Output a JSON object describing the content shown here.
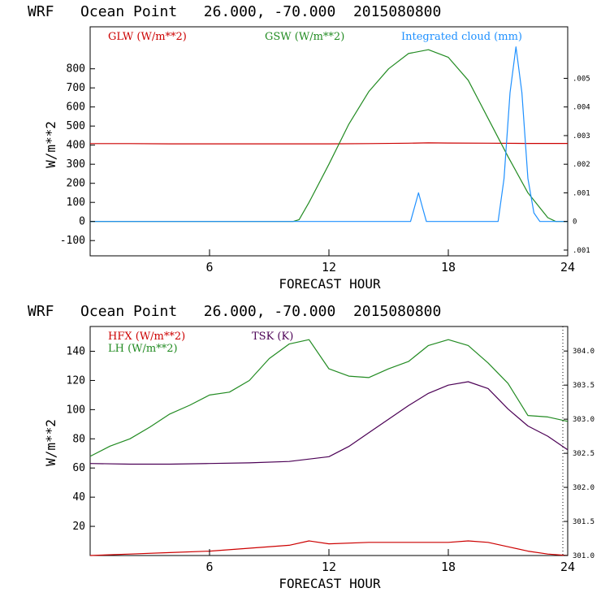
{
  "chart_data": [
    {
      "type": "line",
      "title": "WRF   Ocean Point   26.000, -70.000  2015080800",
      "xlabel": "FORECAST HOUR",
      "ylabel": "W/m**2",
      "xlim": [
        0,
        24
      ],
      "ylim": [
        -180,
        1020
      ],
      "x_ticks": [
        6,
        12,
        18,
        24
      ],
      "y_ticks": [
        -100,
        0,
        100,
        200,
        300,
        400,
        500,
        600,
        700,
        800
      ],
      "y2lim": [
        -0.0012,
        0.0068
      ],
      "y2_ticks": [
        -0.001,
        0,
        0.001,
        0.002,
        0.003,
        0.004,
        0.005
      ],
      "y2_tick_labels": [
        ".001",
        "0",
        ".001",
        ".002",
        ".003",
        ".004",
        ".005"
      ],
      "series": [
        {
          "name": "GLW (W/m**2)",
          "color": "#cc0000",
          "axis": "left",
          "x": [
            0,
            2,
            4,
            6,
            8,
            10,
            12,
            14,
            16,
            17,
            18,
            20,
            22,
            24
          ],
          "y": [
            408,
            408,
            407,
            407,
            407,
            407,
            407,
            408,
            410,
            412,
            411,
            410,
            409,
            409
          ]
        },
        {
          "name": "GSW (W/m**2)",
          "color": "#228b22",
          "axis": "left",
          "x": [
            0,
            10.2,
            10.5,
            11,
            12,
            13,
            14,
            15,
            16,
            17,
            18,
            19,
            20,
            21,
            22,
            23,
            23.4,
            24
          ],
          "y": [
            0,
            0,
            10,
            100,
            300,
            510,
            680,
            800,
            880,
            900,
            860,
            740,
            540,
            340,
            150,
            20,
            0,
            0
          ]
        },
        {
          "name": "Integrated cloud (mm)",
          "color": "#1e90ff",
          "axis": "right",
          "x": [
            0,
            16.1,
            16.3,
            16.5,
            16.7,
            16.9,
            20.5,
            20.8,
            21.1,
            21.4,
            21.7,
            22,
            22.3,
            22.6,
            24
          ],
          "y": [
            0,
            0,
            0.0005,
            0.001,
            0.0005,
            0,
            0,
            0.0015,
            0.0045,
            0.0061,
            0.0045,
            0.0015,
            0.0003,
            0,
            0
          ]
        }
      ]
    },
    {
      "type": "line",
      "title": "WRF   Ocean Point   26.000, -70.000  2015080800",
      "xlabel": "FORECAST HOUR",
      "ylabel": "W/m**2",
      "xlim": [
        0,
        24
      ],
      "ylim": [
        0,
        157
      ],
      "x_ticks": [
        6,
        12,
        18,
        24
      ],
      "y_ticks": [
        20,
        40,
        60,
        80,
        100,
        120,
        140
      ],
      "y2lim": [
        301.0,
        304.36
      ],
      "y2_ticks": [
        301.0,
        301.5,
        302.0,
        302.5,
        303.0,
        303.5,
        304.0
      ],
      "y2_tick_labels": [
        "301.0",
        "301.5",
        "302.0",
        "302.5",
        "303.0",
        "303.5",
        "304.0"
      ],
      "series": [
        {
          "name": "HFX (W/m**2)",
          "color": "#cc0000",
          "axis": "left",
          "x": [
            0,
            2,
            4,
            6,
            8,
            10,
            11,
            12,
            14,
            16,
            18,
            19,
            20,
            21,
            22,
            23,
            24
          ],
          "y": [
            0,
            1,
            2,
            3,
            5,
            7,
            10,
            8,
            9,
            9,
            9,
            10,
            9,
            6,
            3,
            1,
            0
          ]
        },
        {
          "name": "LH (W/m**2)",
          "color": "#228b22",
          "axis": "left",
          "x": [
            0,
            1,
            2,
            3,
            4,
            5,
            6,
            7,
            8,
            9,
            10,
            11,
            12,
            13,
            14,
            15,
            16,
            17,
            18,
            19,
            20,
            21,
            22,
            23,
            24
          ],
          "y": [
            68,
            75,
            80,
            88,
            97,
            103,
            110,
            112,
            120,
            135,
            145,
            148,
            128,
            123,
            122,
            128,
            133,
            144,
            148,
            144,
            132,
            118,
            96,
            95,
            92
          ]
        },
        {
          "name": "TSK (K)",
          "color": "#4b0055",
          "axis": "right",
          "x": [
            0,
            2,
            4,
            6,
            8,
            10,
            12,
            13,
            14,
            15,
            16,
            17,
            18,
            19,
            20,
            21,
            22,
            23,
            24
          ],
          "y": [
            302.35,
            302.34,
            302.34,
            302.35,
            302.36,
            302.38,
            302.45,
            302.6,
            302.8,
            303.0,
            303.2,
            303.38,
            303.5,
            303.55,
            303.45,
            303.15,
            302.9,
            302.75,
            302.55
          ]
        }
      ]
    }
  ]
}
